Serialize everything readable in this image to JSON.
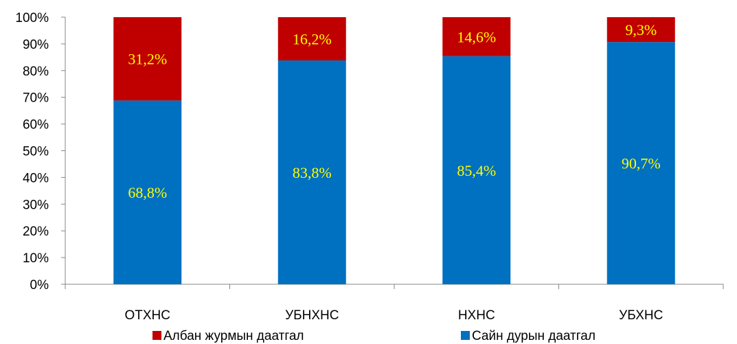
{
  "chart_data": {
    "type": "bar",
    "stacked": true,
    "categories": [
      "ОТХНС",
      "УБНХНС",
      "НХНС",
      "УБХНС"
    ],
    "series": [
      {
        "name": "Сайн дурын даатгал",
        "color": "#0070c0",
        "values": [
          68.8,
          83.8,
          85.4,
          90.7
        ],
        "labels": [
          "68,8%",
          "83,8%",
          "85,4%",
          "90,7%"
        ]
      },
      {
        "name": "Албан журмын даатгал",
        "color": "#c00000",
        "values": [
          31.2,
          16.2,
          14.6,
          9.3
        ],
        "labels": [
          "31,2%",
          "16,2%",
          "14,6%",
          "9,3%"
        ]
      }
    ],
    "legend_order": [
      1,
      0
    ],
    "legend_position": "bottom",
    "ylim": [
      0,
      100
    ],
    "yticks": [
      "0%",
      "10%",
      "20%",
      "30%",
      "40%",
      "50%",
      "60%",
      "70%",
      "80%",
      "90%",
      "100%"
    ],
    "grid": false,
    "data_label_color": "#ffff00"
  }
}
